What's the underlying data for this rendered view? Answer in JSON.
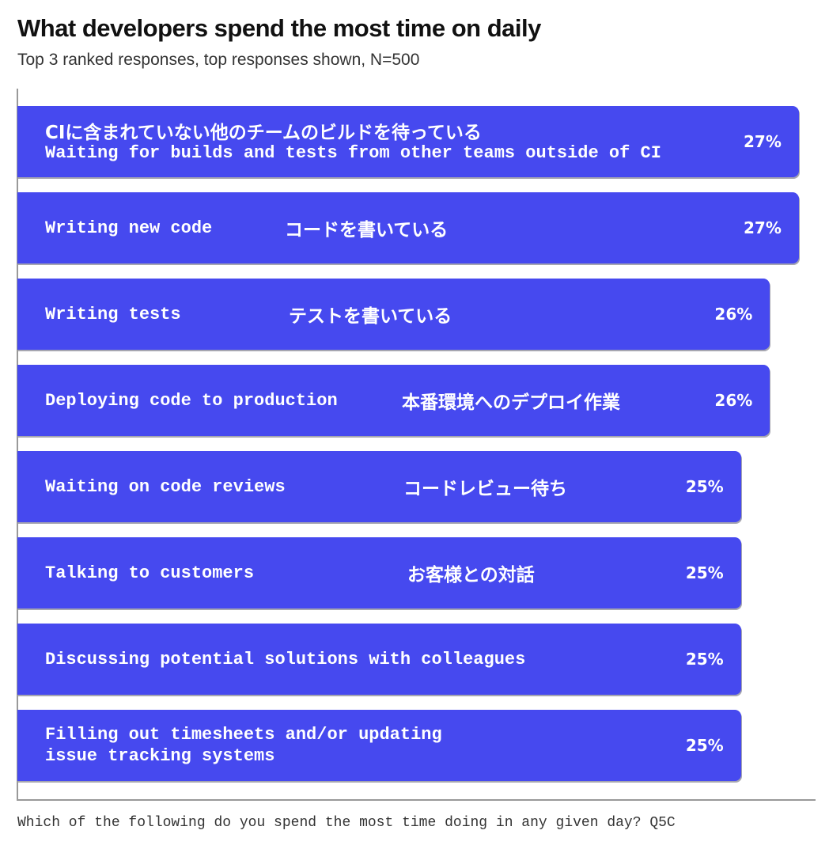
{
  "chart_data": {
    "type": "bar",
    "orientation": "horizontal",
    "title": "What developers spend the most time on daily",
    "subtitle": "Top 3 ranked responses, top responses shown, N=500",
    "categories": [
      "Waiting for builds and tests from other teams outside of CI",
      "Writing new code",
      "Writing tests",
      "Deploying code to production",
      "Waiting on code reviews",
      "Talking to customers",
      "Discussing potential solutions with colleagues",
      "Filling out timesheets and/or updating issue tracking systems"
    ],
    "ja_labels": [
      "CIに含まれていない他のチームのビルドを待っている",
      "コードを書いている",
      "テストを書いている",
      "本番環境へのデプロイ作業",
      "コードレビュー待ち",
      "お客様との対話",
      null,
      null
    ],
    "values": [
      27,
      27,
      26,
      26,
      25,
      25,
      25,
      25
    ],
    "value_labels": [
      "27%",
      "27%",
      "26%",
      "26%",
      "25%",
      "25%",
      "25%",
      "25%"
    ],
    "color": "#4649ef",
    "footnote": "Which of the following do you spend the most time doing in any given day? Q5C"
  }
}
